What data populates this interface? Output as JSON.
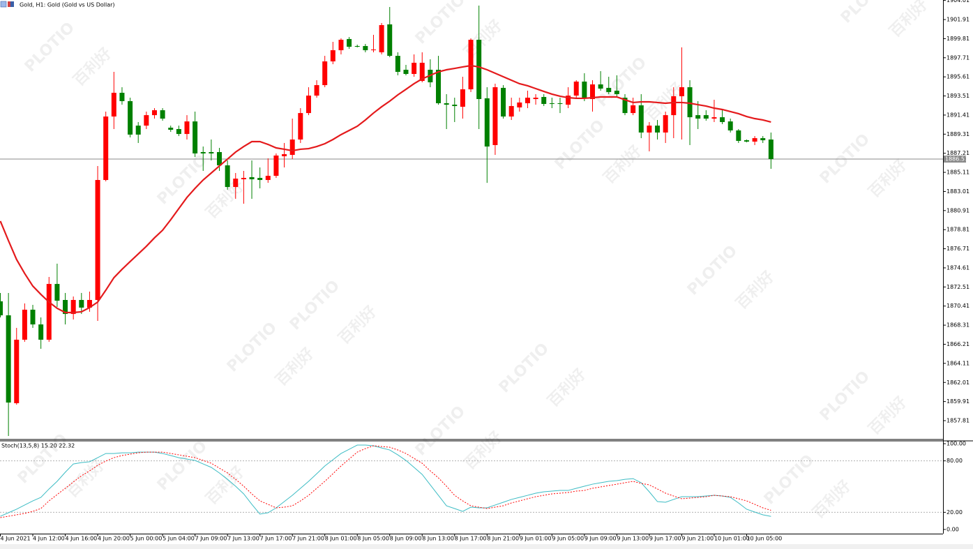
{
  "chart_data": {
    "type": "candlestick",
    "title": "Gold, H1:  Gold (Gold vs US Dollar)",
    "watermarks": [
      "PLOTIO",
      "百利好"
    ],
    "categories": [
      "4 Jun 2021",
      null,
      null,
      null,
      "4 Jun 12:00",
      null,
      null,
      null,
      "4 Jun 16:00",
      null,
      null,
      null,
      "4 Jun 20:00",
      null,
      null,
      null,
      "5 Jun 00:00",
      null,
      null,
      null,
      "5 Jun 04:00",
      null,
      null,
      null,
      "7 Jun 09:00",
      null,
      null,
      null,
      "7 Jun 13:00",
      null,
      null,
      null,
      "7 Jun 17:00",
      null,
      null,
      null,
      "7 Jun 21:00",
      null,
      null,
      null,
      "8 Jun 01:00",
      null,
      null,
      null,
      "8 Jun 05:00",
      null,
      null,
      null,
      "8 Jun 09:00",
      null,
      null,
      null,
      "8 Jun 13:00",
      null,
      null,
      null,
      "8 Jun 17:00",
      null,
      null,
      null,
      "8 Jun 21:00",
      null,
      null,
      null,
      "9 Jun 01:00",
      null,
      null,
      null,
      "9 Jun 05:00",
      null,
      null,
      null,
      "9 Jun 09:00",
      null,
      null,
      null,
      "9 Jun 13:00",
      null,
      null,
      null,
      "9 Jun 17:00",
      null,
      null,
      null,
      "9 Jun 21:00",
      null,
      null,
      null,
      "10 Jun 01:00",
      null,
      null,
      null,
      "10 Jun 05:00",
      null,
      null,
      null
    ],
    "open": [
      1870.93,
      1869.39,
      1859.73,
      1866.71,
      1870.01,
      1868.39,
      1866.71,
      1872.84,
      1871.08,
      1869.54,
      1871.08,
      1870.24,
      1871.08,
      1884.27,
      1891.25,
      1893.86,
      1892.94,
      1890.25,
      1890.25,
      1891.4,
      1891.94,
      1890.02,
      1889.87,
      1889.33,
      1890.71,
      1887.34,
      1887.34,
      1887.34,
      1885.88,
      1883.5,
      1884.35,
      1884.58,
      1884.5,
      1884.27,
      1884.73,
      1886.88,
      1887.03,
      1888.72,
      1891.63,
      1893.55,
      1894.7,
      1897.31,
      1898.54,
      1899.77,
      1899.0,
      1899.0,
      1898.54,
      1898.31,
      1901.38,
      1897.92,
      1896.39,
      1895.93,
      1895.16,
      1896.39,
      1896.39,
      1892.71,
      1892.55,
      1892.32,
      1894.24,
      1899.69,
      1893.25,
      1888.11,
      1894.4,
      1891.25,
      1892.25,
      1892.71,
      1893.17,
      1893.4,
      1892.71,
      1892.71,
      1892.55,
      1893.55,
      1895.09,
      1893.17,
      1894.78,
      1894.4,
      1894.09,
      1893.32,
      1891.63,
      1892.48,
      1889.49,
      1890.25,
      1889.49,
      1891.4,
      1893.48,
      1894.47,
      1891.4,
      1891.4,
      1891.02,
      1891.17,
      1890.71,
      1889.72,
      1888.64,
      1888.49,
      1888.87,
      1888.72
    ],
    "high": [
      1871.85,
      1871.85,
      1868.01,
      1870.7,
      1870.54,
      1869.16,
      1873.61,
      1875.07,
      1871.85,
      1871.46,
      1871.85,
      1872.0,
      1885.81,
      1891.79,
      1896.16,
      1894.47,
      1893.32,
      1890.64,
      1891.79,
      1892.17,
      1892.17,
      1890.25,
      1890.25,
      1891.4,
      1891.79,
      1887.95,
      1888.72,
      1887.8,
      1886.42,
      1885.04,
      1885.27,
      1886.42,
      1885.65,
      1886.65,
      1887.19,
      1888.34,
      1891.02,
      1892.17,
      1894.47,
      1895.24,
      1897.92,
      1899.46,
      1899.84,
      1899.99,
      1899.15,
      1899.23,
      1900.23,
      1901.53,
      1903.29,
      1898.31,
      1896.93,
      1898.08,
      1898.31,
      1897.54,
      1897.92,
      1893.71,
      1893.32,
      1895.62,
      1899.84,
      1903.45,
      1894.47,
      1894.86,
      1894.7,
      1893.32,
      1893.32,
      1894.09,
      1893.71,
      1893.71,
      1893.32,
      1893.32,
      1894.47,
      1895.24,
      1896.01,
      1895.24,
      1896.24,
      1895.62,
      1895.78,
      1893.71,
      1893.32,
      1893.71,
      1890.64,
      1890.87,
      1891.79,
      1894.47,
      1898.85,
      1895.24,
      1892.94,
      1891.94,
      1893.09,
      1891.94,
      1891.02,
      1889.87,
      1888.72,
      1889.1,
      1889.1,
      1889.49
    ],
    "low": [
      1869.16,
      1856.12,
      1859.57,
      1866.48,
      1868.01,
      1865.71,
      1866.48,
      1870.31,
      1868.39,
      1868.93,
      1869.54,
      1869.78,
      1868.78,
      1884.12,
      1889.87,
      1892.55,
      1888.95,
      1888.34,
      1889.87,
      1891.02,
      1890.79,
      1889.56,
      1889.1,
      1888.72,
      1886.8,
      1885.27,
      1886.42,
      1885.27,
      1883.2,
      1882.2,
      1881.66,
      1882.2,
      1883.35,
      1883.96,
      1884.5,
      1885.65,
      1886.57,
      1888.34,
      1891.4,
      1893.32,
      1894.47,
      1897.0,
      1898.08,
      1898.69,
      1898.85,
      1898.31,
      1898.31,
      1898.08,
      1897.77,
      1895.78,
      1895.78,
      1895.62,
      1895.01,
      1894.47,
      1892.55,
      1889.87,
      1890.64,
      1891.02,
      1893.94,
      1889.87,
      1883.96,
      1887.03,
      1891.02,
      1890.87,
      1891.79,
      1892.17,
      1892.55,
      1892.4,
      1892.17,
      1891.63,
      1892.17,
      1893.17,
      1892.94,
      1891.79,
      1894.09,
      1893.71,
      1893.32,
      1891.4,
      1891.4,
      1888.87,
      1887.42,
      1888.72,
      1888.34,
      1888.87,
      1888.72,
      1888.11,
      1889.87,
      1890.79,
      1890.64,
      1890.41,
      1889.49,
      1888.34,
      1888.41,
      1888.11,
      1888.34,
      1885.5
    ],
    "close": [
      1869.39,
      1859.8,
      1866.71,
      1870.01,
      1868.39,
      1866.71,
      1872.84,
      1871.0,
      1869.54,
      1871.08,
      1870.24,
      1871.08,
      1884.27,
      1891.25,
      1893.86,
      1892.94,
      1889.26,
      1889.26,
      1891.4,
      1891.94,
      1891.02,
      1889.79,
      1889.33,
      1890.71,
      1887.19,
      1887.19,
      1887.19,
      1885.88,
      1883.5,
      1884.42,
      1884.5,
      1884.35,
      1884.27,
      1884.73,
      1886.96,
      1887.11,
      1888.72,
      1891.63,
      1893.55,
      1894.7,
      1897.31,
      1898.54,
      1899.69,
      1898.92,
      1898.92,
      1898.54,
      1898.62,
      1901.3,
      1897.92,
      1896.16,
      1895.93,
      1897.16,
      1897.16,
      1895.01,
      1892.71,
      1892.55,
      1892.4,
      1894.24,
      1899.69,
      1893.17,
      1887.95,
      1894.47,
      1891.25,
      1892.4,
      1892.79,
      1893.32,
      1893.32,
      1892.63,
      1892.63,
      1892.63,
      1893.55,
      1895.09,
      1893.25,
      1894.78,
      1894.32,
      1893.94,
      1893.71,
      1891.63,
      1892.48,
      1889.49,
      1890.25,
      1889.49,
      1891.4,
      1893.48,
      1894.47,
      1891.17,
      1891.02,
      1891.02,
      1891.17,
      1890.64,
      1889.72,
      1888.57,
      1888.49,
      1888.87,
      1888.64,
      1886.57
    ],
    "up_color": "#ff0000",
    "down_color": "#008000",
    "ma": {
      "color": "#e41a1c",
      "values": [
        1879.75,
        1877.6,
        1875.53,
        1873.99,
        1872.61,
        1871.69,
        1870.85,
        1870.16,
        1869.7,
        1869.7,
        1869.78,
        1870.24,
        1870.85,
        1872.15,
        1873.53,
        1874.45,
        1875.3,
        1876.14,
        1876.98,
        1877.91,
        1878.75,
        1879.9,
        1881.13,
        1882.35,
        1883.35,
        1884.27,
        1885.04,
        1885.81,
        1886.57,
        1887.34,
        1887.95,
        1888.49,
        1888.49,
        1888.18,
        1887.8,
        1887.65,
        1887.49,
        1887.65,
        1887.72,
        1887.95,
        1888.26,
        1888.72,
        1889.26,
        1889.72,
        1890.18,
        1890.87,
        1891.63,
        1892.32,
        1892.94,
        1893.63,
        1894.24,
        1894.86,
        1895.39,
        1895.78,
        1896.16,
        1896.39,
        1896.54,
        1896.7,
        1896.85,
        1896.7,
        1896.39,
        1896.01,
        1895.62,
        1895.24,
        1894.86,
        1894.63,
        1894.32,
        1894.01,
        1893.71,
        1893.48,
        1893.32,
        1893.25,
        1893.25,
        1893.32,
        1893.4,
        1893.4,
        1893.4,
        1893.09,
        1892.79,
        1892.86,
        1892.86,
        1892.79,
        1892.71,
        1892.79,
        1892.79,
        1892.71,
        1892.55,
        1892.4,
        1892.17,
        1892.02,
        1891.79,
        1891.56,
        1891.25,
        1891.02,
        1890.87,
        1890.64
      ]
    },
    "current_price": 1886.57,
    "ylim": [
      1855.74,
      1904.06
    ],
    "yticks": [
      1857.81,
      1859.91,
      1862.01,
      1864.11,
      1866.21,
      1868.31,
      1870.41,
      1872.51,
      1874.61,
      1876.71,
      1878.81,
      1880.91,
      1883.01,
      1885.11,
      1887.21,
      1889.31,
      1891.41,
      1893.51,
      1895.61,
      1897.71,
      1899.81,
      1901.91,
      1904.01
    ],
    "stochastic": {
      "label": "Stoch(13,5,8) 15.20 22.32",
      "ylim": [
        -4.9,
        103.3
      ],
      "yticks": [
        {
          "value": 0,
          "label": "0.00"
        },
        {
          "value": 20,
          "label": "20.00"
        },
        {
          "value": 80,
          "label": "80.00"
        },
        {
          "value": 100,
          "label": "100.00"
        }
      ],
      "levels": [
        20,
        80
      ],
      "main": {
        "color": "#3cbcc4",
        "values": [
          15.4,
          19.5,
          23.6,
          28.5,
          33.3,
          37.4,
          47.2,
          56.1,
          66.7,
          76.4,
          78.0,
          78.9,
          83.7,
          88.6,
          88.6,
          89.4,
          89.4,
          90.2,
          90.2,
          90.2,
          88.6,
          86.2,
          83.7,
          82.1,
          80.5,
          76.4,
          72.4,
          65.9,
          58.5,
          50.4,
          41.5,
          29.3,
          17.9,
          19.5,
          25.2,
          32.5,
          39.8,
          48.0,
          56.1,
          65.0,
          74.0,
          81.3,
          88.6,
          93.5,
          98.4,
          98.4,
          97.6,
          95.1,
          92.7,
          87.0,
          80.5,
          72.4,
          64.2,
          52.0,
          39.8,
          27.6,
          24.4,
          21.1,
          26.0,
          25.2,
          25.2,
          28.5,
          31.7,
          35.0,
          37.4,
          39.8,
          42.3,
          43.9,
          44.7,
          45.5,
          45.5,
          48.0,
          50.4,
          52.8,
          54.5,
          56.1,
          56.9,
          58.5,
          59.3,
          54.5,
          43.9,
          32.5,
          31.7,
          35.0,
          38.2,
          38.2,
          38.2,
          39.0,
          39.8,
          39.0,
          37.4,
          30.9,
          23.6,
          20.3,
          17.1,
          15.2
        ]
      },
      "signal": {
        "color": "#ff0000",
        "values": [
          13.8,
          15.4,
          17.1,
          18.7,
          21.1,
          24.4,
          33.3,
          40.7,
          48.0,
          55.3,
          62.6,
          68.3,
          74.8,
          79.7,
          83.7,
          86.2,
          87.8,
          89.4,
          90.2,
          90.2,
          90.2,
          88.6,
          87.0,
          85.4,
          83.7,
          80.5,
          77.2,
          71.5,
          65.9,
          58.5,
          50.4,
          41.5,
          33.3,
          29.3,
          25.2,
          26.0,
          27.6,
          33.3,
          39.8,
          48.0,
          56.1,
          65.0,
          74.0,
          82.1,
          90.2,
          94.3,
          97.6,
          96.7,
          95.9,
          92.7,
          88.6,
          82.9,
          77.2,
          68.3,
          60.2,
          50.4,
          39.8,
          33.3,
          27.6,
          26.0,
          24.4,
          26.0,
          27.6,
          30.9,
          33.3,
          35.8,
          38.2,
          39.8,
          41.5,
          42.3,
          43.1,
          44.7,
          45.5,
          48.0,
          49.6,
          51.2,
          52.8,
          54.5,
          56.1,
          53.7,
          52.0,
          47.2,
          42.3,
          39.0,
          35.8,
          36.6,
          37.4,
          38.2,
          39.8,
          39.0,
          38.2,
          35.8,
          33.3,
          29.3,
          25.2,
          22.32
        ]
      }
    }
  }
}
